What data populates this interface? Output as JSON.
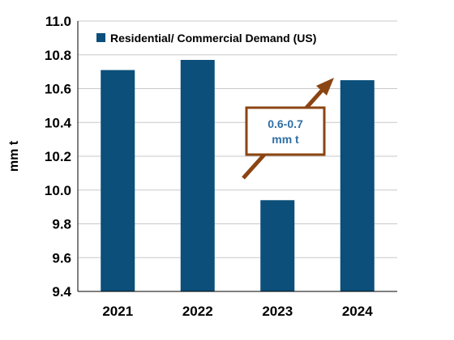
{
  "chart_data": {
    "type": "bar",
    "categories": [
      "2021",
      "2022",
      "2023",
      "2024"
    ],
    "series": [
      {
        "name": "Residential/ Commercial Demand (US)",
        "values": [
          10.71,
          10.77,
          9.94,
          10.65
        ]
      }
    ],
    "ylabel": "mm t",
    "xlabel": "",
    "ylim": [
      9.4,
      11.0
    ],
    "yticks": [
      "9.4",
      "9.6",
      "9.8",
      "10.0",
      "10.2",
      "10.4",
      "10.6",
      "10.8",
      "11.0"
    ],
    "grid": true,
    "legend_position": "top",
    "annotation": {
      "line1": "0.6-0.7",
      "line2": "mm t"
    },
    "colors": {
      "bar": "#0b4f7a",
      "grid": "#c8c8c8",
      "annotation_border": "#8b4513",
      "annotation_text": "#2e6fa6",
      "arrow": "#8b4513"
    }
  }
}
